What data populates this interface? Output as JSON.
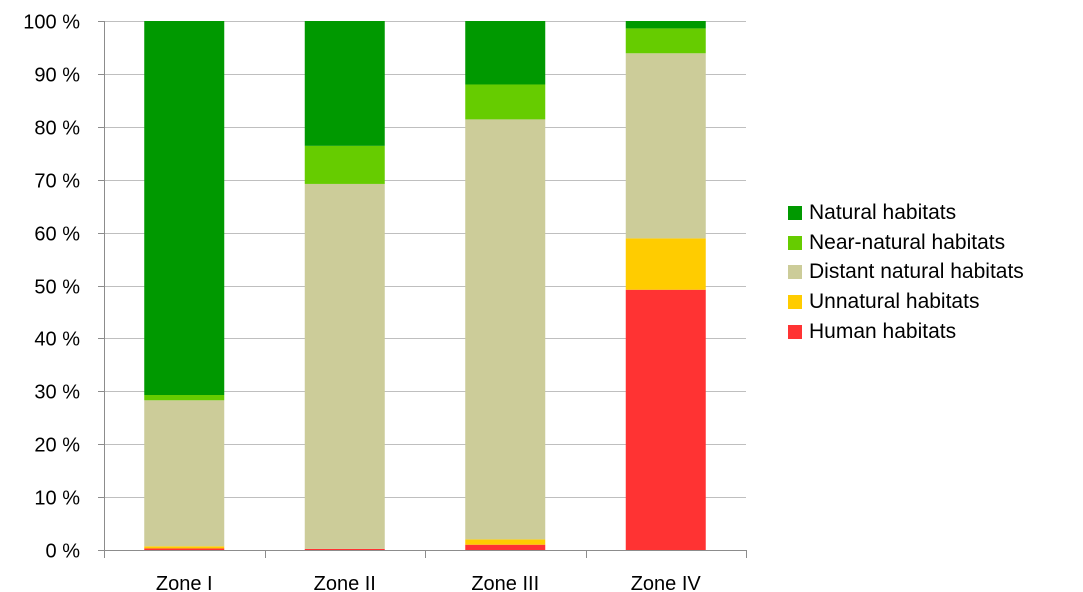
{
  "chart_data": {
    "type": "bar",
    "stacked": true,
    "percent": true,
    "categories": [
      "Zone I",
      "Zone II",
      "Zone III",
      "Zone IV"
    ],
    "ylim": [
      0,
      100
    ],
    "yticks": [
      0,
      10,
      20,
      30,
      40,
      50,
      60,
      70,
      80,
      90,
      100
    ],
    "ytick_suffix": " %",
    "grid": true,
    "legend_position": "right",
    "series": [
      {
        "name": "Human habitats",
        "color": "#ff3333",
        "values": [
          0.3,
          0.2,
          1.0,
          49.2
        ]
      },
      {
        "name": "Unnatural habitats",
        "color": "#ffcc00",
        "values": [
          0.4,
          0.0,
          1.0,
          9.7
        ]
      },
      {
        "name": "Distant natural habitats",
        "color": "#cccc99",
        "values": [
          27.6,
          69.0,
          79.4,
          35.0
        ]
      },
      {
        "name": "Near-natural habitats",
        "color": "#66cc00",
        "values": [
          1.0,
          7.2,
          6.6,
          4.7
        ]
      },
      {
        "name": "Natural habitats",
        "color": "#009900",
        "values": [
          70.7,
          23.6,
          12.0,
          1.4
        ]
      }
    ],
    "legend_order": [
      4,
      3,
      2,
      1,
      0
    ]
  }
}
